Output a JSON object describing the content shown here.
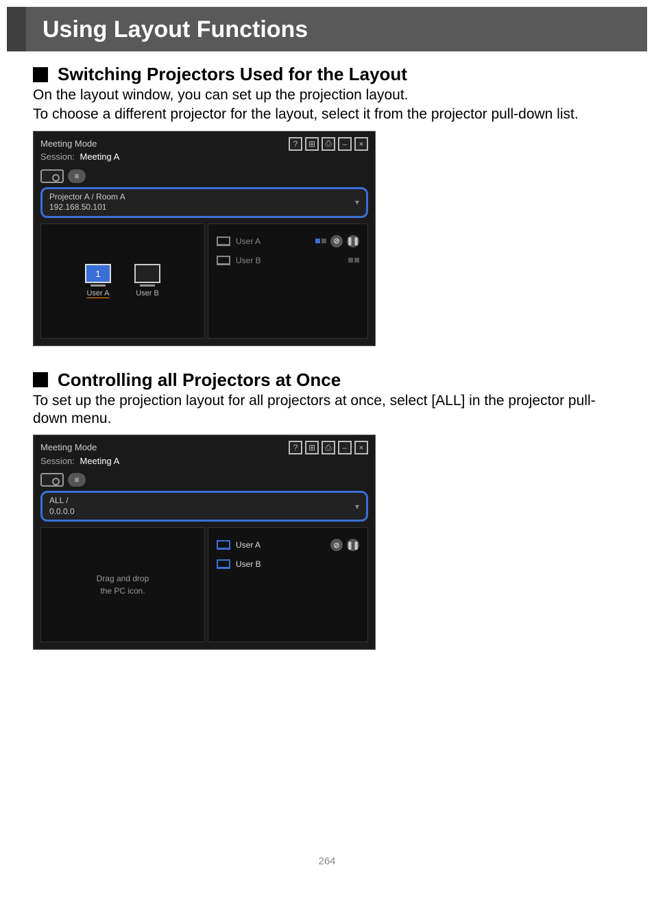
{
  "page_title": "Using Layout Functions",
  "page_number": "264",
  "section1": {
    "heading": "Switching Projectors Used for the Layout",
    "para1": "On the layout window, you can set up the projection layout.",
    "para2": "To choose a different projector for the layout, select it from the projector pull-down list."
  },
  "section2": {
    "heading": "Controlling all Projectors at Once",
    "para1": "To set up the projection layout for all projectors at once, select [ALL] in the projector pull-down menu."
  },
  "window1": {
    "mode": "Meeting Mode",
    "session_label": "Session:",
    "session_name": "Meeting A",
    "title_icons": [
      "?",
      "⊞",
      "⎙",
      "–",
      "×"
    ],
    "list_icon": "≡",
    "selector_line1": "Projector A / Room A",
    "selector_line2": "192.168.50.101",
    "selector_arrow": "▾",
    "slot1_num": "1",
    "slot1_label": "User A",
    "slot2_label": "User B",
    "userA": "User A",
    "userB": "User B",
    "circ_slash": "⊘",
    "circ_pause": "❚❚"
  },
  "window2": {
    "mode": "Meeting Mode",
    "session_label": "Session:",
    "session_name": "Meeting A",
    "title_icons": [
      "?",
      "⊞",
      "⎙",
      "–",
      "×"
    ],
    "list_icon": "≡",
    "selector_line1": "ALL /",
    "selector_line2": "0.0.0.0",
    "selector_arrow": "▾",
    "hint_line1": "Drag and drop",
    "hint_line2": "the PC icon.",
    "userA": "User A",
    "userB": "User B",
    "circ_slash": "⊘",
    "circ_pause": "❚❚"
  },
  "colors": {
    "header_bg": "#595959",
    "header_border": "#404040",
    "accent_blue": "#3a6fd8",
    "accent_orange": "#ff8c00",
    "window_bg": "#1a1a1a",
    "pane_bg": "#111111"
  }
}
